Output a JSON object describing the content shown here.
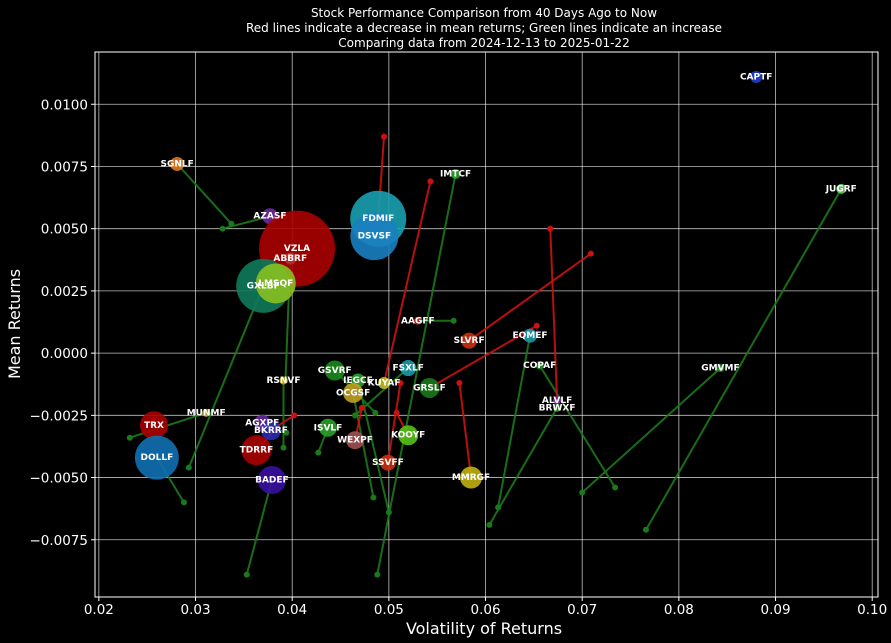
{
  "chart_data": {
    "type": "scatter",
    "title_lines": [
      "Stock Performance Comparison from 40 Days Ago to Now",
      "Red lines indicate a decrease in mean returns; Green lines indicate an increase",
      "Comparing data from 2024-12-13 to 2025-01-22"
    ],
    "xlabel": "Volatility of Returns",
    "ylabel": "Mean Returns",
    "xlim": [
      0.0196,
      0.1006
    ],
    "ylim": [
      -0.0098,
      0.0121
    ],
    "xticks": [
      0.02,
      0.03,
      0.04,
      0.05,
      0.06,
      0.07,
      0.08,
      0.09,
      0.1
    ],
    "xtick_labels": [
      "0.02",
      "0.03",
      "0.04",
      "0.05",
      "0.06",
      "0.07",
      "0.08",
      "0.09",
      "0.10"
    ],
    "yticks": [
      -0.0075,
      -0.005,
      -0.0025,
      0.0,
      0.0025,
      0.005,
      0.0075,
      0.01
    ],
    "ytick_labels": [
      "−0.0075",
      "−0.0050",
      "−0.0025",
      "0.0000",
      "0.0025",
      "0.0050",
      "0.0075",
      "0.0100"
    ],
    "grid": true,
    "colors": {
      "increase": "#1a7a1a",
      "decrease": "#cc1111"
    },
    "points": [
      {
        "label": "CAPTF",
        "x": 0.088,
        "y": 0.0111,
        "old": null,
        "size": 6,
        "color": "#1f3fd0"
      },
      {
        "label": "JUGRF",
        "x": 0.0968,
        "y": 0.0066,
        "old": [
          0.0766,
          -0.0071
        ],
        "size": 5,
        "color": "#5fd05f"
      },
      {
        "label": "SGNLF",
        "x": 0.0281,
        "y": 0.0076,
        "old": [
          0.0337,
          0.0052
        ],
        "size": 7,
        "color": "#e07820"
      },
      {
        "label": "IMTCF",
        "x": 0.0569,
        "y": 0.0072,
        "old": [
          0.0488,
          -0.0089
        ],
        "size": 5,
        "color": "#2aa02a"
      },
      {
        "label": "AZASF",
        "x": 0.0377,
        "y": 0.0055,
        "old": [
          0.0328,
          0.005
        ],
        "size": 8,
        "color": "#6a2aa0"
      },
      {
        "label": "FDMIF",
        "x": 0.0489,
        "y": 0.0054,
        "old": [
          0.0495,
          0.0087
        ],
        "size": 28,
        "color": "#18a0b0"
      },
      {
        "label": "DSVSF",
        "x": 0.0485,
        "y": 0.0047,
        "old": [
          0.0488,
          0.0048
        ],
        "size": 24,
        "color": "#1a80c0"
      },
      {
        "label": "VZLA",
        "x": 0.0405,
        "y": 0.0042,
        "old": [
          0.0393,
          0.0033
        ],
        "size": 38,
        "color": "#aa0000"
      },
      {
        "label": "ABBRF",
        "x": 0.0398,
        "y": 0.0038,
        "old": [
          0.0393,
          -0.0011
        ],
        "size": 6,
        "color": "#bb3030"
      },
      {
        "label": "GXLBF",
        "x": 0.037,
        "y": 0.0027,
        "old": [
          0.0293,
          -0.0046
        ],
        "size": 27,
        "color": "#0e7a5a"
      },
      {
        "label": "LMSQF",
        "x": 0.0383,
        "y": 0.0028,
        "old": [
          0.0392,
          0.0022
        ],
        "size": 20,
        "color": "#88c020"
      },
      {
        "label": "AAGFF",
        "x": 0.053,
        "y": 0.0013,
        "old": [
          0.0567,
          0.0013
        ],
        "size": 4,
        "color": "#cc2020"
      },
      {
        "label": "EQMEF",
        "x": 0.0646,
        "y": 0.0007,
        "old": [
          0.0613,
          -0.0062
        ],
        "size": 7,
        "color": "#1a9aaa"
      },
      {
        "label": "SLVRF",
        "x": 0.0583,
        "y": 0.0005,
        "old": [
          0.0709,
          0.004
        ],
        "size": 8,
        "color": "#cc3010"
      },
      {
        "label": "COPAF",
        "x": 0.0656,
        "y": -0.0005,
        "old": [
          0.0734,
          -0.0054
        ],
        "size": 4,
        "color": "#2a8a2a"
      },
      {
        "label": "GMVMF",
        "x": 0.0843,
        "y": -0.0006,
        "old": [
          0.07,
          -0.0056
        ],
        "size": 4,
        "color": "#2a8a2a"
      },
      {
        "label": "FSXLF",
        "x": 0.052,
        "y": -0.0006,
        "old": [
          0.0465,
          -0.0025
        ],
        "size": 8,
        "color": "#1a9aaa"
      },
      {
        "label": "GSVRF",
        "x": 0.0444,
        "y": -0.0007,
        "old": [
          0.0486,
          -0.0024
        ],
        "size": 10,
        "color": "#1a8a1a"
      },
      {
        "label": "RSNVF",
        "x": 0.0391,
        "y": -0.0011,
        "old": [
          0.0391,
          -0.0038
        ],
        "size": 4,
        "color": "#ccaa10"
      },
      {
        "label": "IEGCF",
        "x": 0.0468,
        "y": -0.0011,
        "old": [
          0.05,
          -0.0064
        ],
        "size": 7,
        "color": "#2aa02a"
      },
      {
        "label": "KUYAF",
        "x": 0.0495,
        "y": -0.0012,
        "old": [
          0.0543,
          0.0069
        ],
        "size": 6,
        "color": "#c0c020"
      },
      {
        "label": "GRSLF",
        "x": 0.0542,
        "y": -0.0014,
        "old": [
          0.0653,
          0.0011
        ],
        "size": 10,
        "color": "#1a7a1a"
      },
      {
        "label": "OCGSF",
        "x": 0.0463,
        "y": -0.0016,
        "old": [
          0.0484,
          -0.0058
        ],
        "size": 10,
        "color": "#c0a020"
      },
      {
        "label": "ALVLF",
        "x": 0.0674,
        "y": -0.0019,
        "old": [
          0.0667,
          0.005
        ],
        "size": 4,
        "color": "#7a2aa0"
      },
      {
        "label": "BRWXF",
        "x": 0.0674,
        "y": -0.0022,
        "old": [
          0.0604,
          -0.0069
        ],
        "size": 4,
        "color": "#2a8a2a"
      },
      {
        "label": "MUNMF",
        "x": 0.0311,
        "y": -0.0024,
        "old": [
          0.0232,
          -0.0034
        ],
        "size": 4,
        "color": "#c8a020"
      },
      {
        "label": "AGXPF",
        "x": 0.0369,
        "y": -0.0028,
        "old": [
          0.0394,
          -0.0032
        ],
        "size": 8,
        "color": "#6a2aa0"
      },
      {
        "label": "TRX",
        "x": 0.0257,
        "y": -0.0029,
        "old": [
          0.0256,
          -0.0027
        ],
        "size": 14,
        "color": "#aa0000"
      },
      {
        "label": "ISVLF",
        "x": 0.0437,
        "y": -0.003,
        "old": [
          0.0427,
          -0.004
        ],
        "size": 9,
        "color": "#2aa02a"
      },
      {
        "label": "BKRRF",
        "x": 0.0378,
        "y": -0.0031,
        "old": [
          0.0402,
          -0.0025
        ],
        "size": 10,
        "color": "#2a2ab0"
      },
      {
        "label": "KOOYF",
        "x": 0.052,
        "y": -0.0033,
        "old": [
          0.0508,
          -0.0024
        ],
        "size": 10,
        "color": "#58c018"
      },
      {
        "label": "WEXPF",
        "x": 0.0465,
        "y": -0.0035,
        "old": [
          0.0472,
          -0.0022
        ],
        "size": 9,
        "color": "#a05050"
      },
      {
        "label": "TDRRF",
        "x": 0.0363,
        "y": -0.0039,
        "old": [
          0.0384,
          -0.003
        ],
        "size": 15,
        "color": "#aa0000"
      },
      {
        "label": "DOLLF",
        "x": 0.026,
        "y": -0.0042,
        "old": [
          0.0288,
          -0.006
        ],
        "size": 22,
        "color": "#1070b0"
      },
      {
        "label": "SSVFF",
        "x": 0.0499,
        "y": -0.0044,
        "old": [
          0.0512,
          -0.0012
        ],
        "size": 8,
        "color": "#cc3010"
      },
      {
        "label": "MMRGF",
        "x": 0.0585,
        "y": -0.005,
        "old": [
          0.0573,
          -0.0012
        ],
        "size": 11,
        "color": "#c0b010"
      },
      {
        "label": "BADEF",
        "x": 0.0379,
        "y": -0.0051,
        "old": [
          0.0353,
          -0.0089
        ],
        "size": 14,
        "color": "#3a10a0"
      }
    ]
  }
}
